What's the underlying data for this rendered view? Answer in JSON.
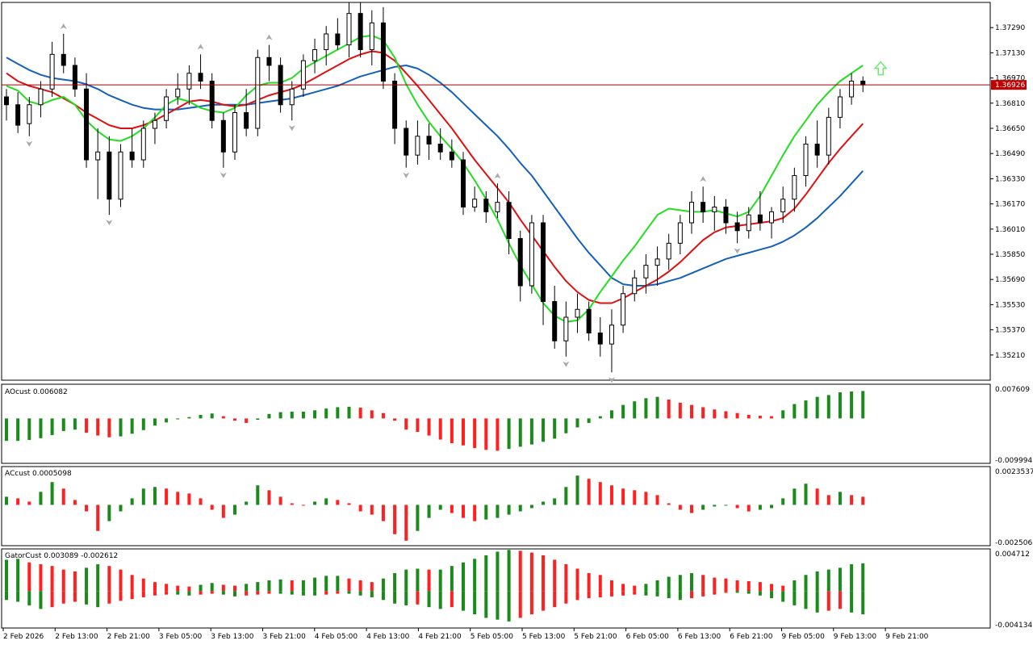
{
  "chart_data": {
    "type": "candlestick",
    "price": {
      "current_label": "1.36926",
      "current_value": 1.36926,
      "ylim": [
        1.3505,
        1.3745
      ],
      "yticks": [
        "1.37290",
        "1.37130",
        "1.36970",
        "1.36810",
        "1.36650",
        "1.36490",
        "1.36330",
        "1.36170",
        "1.36010",
        "1.35850",
        "1.35690",
        "1.35530",
        "1.35370",
        "1.35210"
      ],
      "candles": [
        [
          1.3685,
          1.369,
          1.367,
          1.368
        ],
        [
          1.368,
          1.3688,
          1.3662,
          1.3667
        ],
        [
          1.3668,
          1.3685,
          1.366,
          1.368
        ],
        [
          1.368,
          1.3695,
          1.3672,
          1.369
        ],
        [
          1.369,
          1.372,
          1.3685,
          1.3712
        ],
        [
          1.3712,
          1.3725,
          1.37,
          1.3705
        ],
        [
          1.3705,
          1.371,
          1.3685,
          1.369
        ],
        [
          1.369,
          1.37,
          1.364,
          1.3645
        ],
        [
          1.3645,
          1.3665,
          1.362,
          1.365
        ],
        [
          1.365,
          1.366,
          1.361,
          1.362
        ],
        [
          1.362,
          1.3655,
          1.3615,
          1.365
        ],
        [
          1.365,
          1.3665,
          1.364,
          1.3645
        ],
        [
          1.3645,
          1.367,
          1.364,
          1.3665
        ],
        [
          1.3665,
          1.3675,
          1.3655,
          1.367
        ],
        [
          1.367,
          1.369,
          1.3665,
          1.3685
        ],
        [
          1.3685,
          1.37,
          1.368,
          1.369
        ],
        [
          1.369,
          1.3705,
          1.368,
          1.37
        ],
        [
          1.37,
          1.3712,
          1.369,
          1.3695
        ],
        [
          1.3695,
          1.37,
          1.3665,
          1.367
        ],
        [
          1.367,
          1.3675,
          1.364,
          1.365
        ],
        [
          1.365,
          1.368,
          1.3645,
          1.3675
        ],
        [
          1.3675,
          1.369,
          1.366,
          1.3665
        ],
        [
          1.3665,
          1.3715,
          1.366,
          1.371
        ],
        [
          1.371,
          1.3718,
          1.3695,
          1.3705
        ],
        [
          1.3705,
          1.371,
          1.3675,
          1.368
        ],
        [
          1.368,
          1.3695,
          1.367,
          1.369
        ],
        [
          1.369,
          1.3712,
          1.3685,
          1.3708
        ],
        [
          1.3708,
          1.3722,
          1.37,
          1.3715
        ],
        [
          1.3715,
          1.373,
          1.3705,
          1.3725
        ],
        [
          1.3725,
          1.3735,
          1.3715,
          1.3718
        ],
        [
          1.3718,
          1.3745,
          1.371,
          1.3738
        ],
        [
          1.3738,
          1.3745,
          1.371,
          1.3715
        ],
        [
          1.3715,
          1.374,
          1.3705,
          1.3732
        ],
        [
          1.3732,
          1.3742,
          1.369,
          1.3695
        ],
        [
          1.3695,
          1.37,
          1.3655,
          1.3665
        ],
        [
          1.3665,
          1.367,
          1.364,
          1.3648
        ],
        [
          1.3648,
          1.367,
          1.3642,
          1.366
        ],
        [
          1.366,
          1.3668,
          1.3645,
          1.3655
        ],
        [
          1.3655,
          1.3665,
          1.3645,
          1.365
        ],
        [
          1.365,
          1.3658,
          1.364,
          1.3645
        ],
        [
          1.3645,
          1.365,
          1.361,
          1.3615
        ],
        [
          1.3615,
          1.3628,
          1.3612,
          1.362
        ],
        [
          1.362,
          1.3625,
          1.3605,
          1.3612
        ],
        [
          1.3612,
          1.363,
          1.3608,
          1.3618
        ],
        [
          1.3618,
          1.3625,
          1.3585,
          1.3595
        ],
        [
          1.3595,
          1.36,
          1.3555,
          1.3565
        ],
        [
          1.3565,
          1.361,
          1.356,
          1.3605
        ],
        [
          1.3605,
          1.361,
          1.354,
          1.3555
        ],
        [
          1.3555,
          1.3565,
          1.3525,
          1.353
        ],
        [
          1.353,
          1.3555,
          1.352,
          1.3545
        ],
        [
          1.3545,
          1.356,
          1.3535,
          1.355
        ],
        [
          1.355,
          1.3555,
          1.353,
          1.3535
        ],
        [
          1.3535,
          1.3545,
          1.352,
          1.3528
        ],
        [
          1.3528,
          1.355,
          1.351,
          1.354
        ],
        [
          1.354,
          1.3565,
          1.3535,
          1.356
        ],
        [
          1.356,
          1.3575,
          1.3555,
          1.357
        ],
        [
          1.357,
          1.3585,
          1.356,
          1.3578
        ],
        [
          1.3578,
          1.359,
          1.3565,
          1.3582
        ],
        [
          1.3582,
          1.3598,
          1.3575,
          1.3592
        ],
        [
          1.3592,
          1.361,
          1.3585,
          1.3605
        ],
        [
          1.3605,
          1.3625,
          1.3598,
          1.3618
        ],
        [
          1.3618,
          1.3628,
          1.3605,
          1.3612
        ],
        [
          1.3612,
          1.3622,
          1.36,
          1.3615
        ],
        [
          1.3615,
          1.362,
          1.3598,
          1.3605
        ],
        [
          1.3605,
          1.3612,
          1.3592,
          1.36
        ],
        [
          1.36,
          1.3615,
          1.3595,
          1.361
        ],
        [
          1.361,
          1.3625,
          1.36,
          1.3605
        ],
        [
          1.3605,
          1.3615,
          1.3595,
          1.3612
        ],
        [
          1.3612,
          1.3628,
          1.3605,
          1.362
        ],
        [
          1.362,
          1.364,
          1.3612,
          1.3635
        ],
        [
          1.3635,
          1.366,
          1.3628,
          1.3655
        ],
        [
          1.3655,
          1.367,
          1.364,
          1.3648
        ],
        [
          1.3648,
          1.3678,
          1.3642,
          1.3672
        ],
        [
          1.3672,
          1.369,
          1.3665,
          1.3685
        ],
        [
          1.3685,
          1.37,
          1.368,
          1.3695
        ],
        [
          1.3695,
          1.3698,
          1.3688,
          1.36926
        ]
      ]
    },
    "alligator": {
      "jaw": [
        1.371,
        1.3706,
        1.3702,
        1.3699,
        1.3697,
        1.3696,
        1.3695,
        1.3693,
        1.369,
        1.3686,
        1.3683,
        1.368,
        1.3678,
        1.3677,
        1.3677,
        1.3677,
        1.3678,
        1.3679,
        1.368,
        1.368,
        1.368,
        1.368,
        1.3681,
        1.3682,
        1.3683,
        1.3684,
        1.3686,
        1.3688,
        1.369,
        1.3692,
        1.3695,
        1.3698,
        1.37,
        1.3702,
        1.3704,
        1.3705,
        1.3703,
        1.3699,
        1.3694,
        1.3688,
        1.3681,
        1.3674,
        1.3667,
        1.366,
        1.3652,
        1.3643,
        1.3635,
        1.3625,
        1.3615,
        1.3605,
        1.3595,
        1.3586,
        1.3578,
        1.357,
        1.3566,
        1.3565,
        1.3565,
        1.3566,
        1.3568,
        1.357,
        1.3573,
        1.3576,
        1.3579,
        1.3582,
        1.3584,
        1.3586,
        1.3588,
        1.359,
        1.3593,
        1.3597,
        1.3602,
        1.3608,
        1.3615,
        1.3622,
        1.363,
        1.3638
      ],
      "teeth": [
        1.37,
        1.3695,
        1.3692,
        1.369,
        1.3688,
        1.3684,
        1.368,
        1.3675,
        1.3671,
        1.3667,
        1.3665,
        1.3665,
        1.3667,
        1.367,
        1.3674,
        1.3678,
        1.3682,
        1.3683,
        1.3682,
        1.368,
        1.3679,
        1.368,
        1.3683,
        1.3686,
        1.3688,
        1.369,
        1.3693,
        1.3697,
        1.3701,
        1.3705,
        1.3709,
        1.3712,
        1.3714,
        1.3713,
        1.3708,
        1.37,
        1.3692,
        1.3683,
        1.3674,
        1.3665,
        1.3655,
        1.3645,
        1.3636,
        1.3627,
        1.3618,
        1.3607,
        1.3597,
        1.3587,
        1.3577,
        1.3568,
        1.3561,
        1.3556,
        1.3554,
        1.3554,
        1.3557,
        1.3561,
        1.3565,
        1.3569,
        1.3574,
        1.358,
        1.3587,
        1.3594,
        1.3599,
        1.3602,
        1.3603,
        1.3604,
        1.3605,
        1.3606,
        1.3608,
        1.3614,
        1.3623,
        1.3633,
        1.3643,
        1.3652,
        1.366,
        1.3668
      ],
      "lips": [
        1.3692,
        1.3689,
        1.3682,
        1.368,
        1.3683,
        1.3685,
        1.368,
        1.367,
        1.3663,
        1.3658,
        1.3657,
        1.366,
        1.3665,
        1.3672,
        1.368,
        1.3684,
        1.3682,
        1.3678,
        1.3676,
        1.3675,
        1.3678,
        1.3686,
        1.3692,
        1.3694,
        1.3694,
        1.3697,
        1.3703,
        1.3707,
        1.3711,
        1.3715,
        1.3719,
        1.3723,
        1.3724,
        1.3721,
        1.371,
        1.3693,
        1.368,
        1.3669,
        1.366,
        1.3652,
        1.3643,
        1.3632,
        1.362,
        1.3607,
        1.3592,
        1.3578,
        1.3566,
        1.3554,
        1.3546,
        1.3542,
        1.3543,
        1.355,
        1.3561,
        1.3571,
        1.3581,
        1.359,
        1.36,
        1.361,
        1.3614,
        1.3613,
        1.3612,
        1.3612,
        1.3613,
        1.3611,
        1.3609,
        1.3612,
        1.3622,
        1.3635,
        1.3648,
        1.366,
        1.367,
        1.368,
        1.3688,
        1.3695,
        1.37,
        1.3705
      ]
    },
    "ao": {
      "label": "AOcust 0.006082",
      "ylim": [
        -0.009994,
        0.007609
      ],
      "yticks": [
        "0.007609",
        "-0.009994"
      ],
      "values": [
        -0.005,
        -0.005,
        -0.0048,
        -0.0044,
        -0.0037,
        -0.0028,
        -0.0025,
        -0.0032,
        -0.0038,
        -0.0042,
        -0.004,
        -0.0034,
        -0.0026,
        -0.0016,
        -0.0009,
        -0.0002,
        0.0003,
        0.0008,
        0.0011,
        0.0005,
        -0.0005,
        -0.001,
        -0.0003,
        0.001,
        0.0014,
        0.0015,
        0.0015,
        0.0018,
        0.0022,
        0.0025,
        0.0026,
        0.0024,
        0.0018,
        0.0012,
        -0.0005,
        -0.0025,
        -0.003,
        -0.0038,
        -0.0047,
        -0.0055,
        -0.006,
        -0.0066,
        -0.007,
        -0.0072,
        -0.0068,
        -0.0063,
        -0.0058,
        -0.0052,
        -0.0045,
        -0.0033,
        -0.002,
        -0.001,
        0.0005,
        0.0018,
        0.003,
        0.0038,
        0.0045,
        0.0048,
        0.0042,
        0.0035,
        0.003,
        0.0025,
        0.002,
        0.0016,
        0.0012,
        0.0008,
        0.0006,
        0.0005,
        0.0018,
        0.0032,
        0.004,
        0.0048,
        0.0052,
        0.0058,
        0.006,
        0.0061
      ]
    },
    "ac": {
      "label": "ACcust 0.0005098",
      "ylim": [
        -0.0025062,
        0.0023537
      ],
      "yticks": [
        "0.0023537",
        "-0.0025062"
      ],
      "values": [
        0.0005,
        0.0004,
        0.0002,
        0.0008,
        0.0014,
        0.001,
        0.0003,
        -0.0004,
        -0.0016,
        -0.001,
        -0.0004,
        0.0004,
        0.001,
        0.0011,
        0.001,
        0.0008,
        0.0007,
        0.0004,
        -0.0003,
        -0.0008,
        -0.0006,
        0.0002,
        0.0012,
        0.0009,
        0.0005,
        0.0001,
        0.0,
        0.0002,
        0.0004,
        0.0003,
        0.0001,
        -0.0004,
        -0.0006,
        -0.001,
        -0.0018,
        -0.0022,
        -0.0016,
        -0.0008,
        -0.0003,
        -0.0005,
        -0.0008,
        -0.001,
        -0.0009,
        -0.0008,
        -0.0006,
        -0.0004,
        -0.0002,
        0.0002,
        0.0004,
        0.0011,
        0.0018,
        0.0016,
        0.0014,
        0.0012,
        0.001,
        0.0009,
        0.0008,
        0.0006,
        0.0001,
        -0.0003,
        -0.0005,
        -0.0003,
        -0.0001,
        0.0,
        -0.0002,
        -0.0004,
        -0.0003,
        -0.0002,
        0.0004,
        0.001,
        0.0013,
        0.001,
        0.0006,
        0.0008,
        0.0006,
        0.0005
      ]
    },
    "gator": {
      "label": "GatorCust 0.003089 -0.002612",
      "ylim": [
        -0.004134,
        0.004712
      ],
      "yticks": [
        "0.004712",
        "-0.004134"
      ],
      "upper": [
        0.0035,
        0.0036,
        0.0032,
        0.003,
        0.0028,
        0.0024,
        0.0022,
        0.0026,
        0.003,
        0.0028,
        0.0024,
        0.0018,
        0.0014,
        0.001,
        0.0008,
        0.0006,
        0.0005,
        0.0007,
        0.0009,
        0.0007,
        0.0006,
        0.0008,
        0.001,
        0.0012,
        0.0013,
        0.0012,
        0.0012,
        0.0015,
        0.0017,
        0.0017,
        0.0014,
        0.0012,
        0.001,
        0.0014,
        0.002,
        0.0024,
        0.0025,
        0.0024,
        0.0024,
        0.0028,
        0.0032,
        0.0036,
        0.004,
        0.0044,
        0.0046,
        0.0045,
        0.0043,
        0.004,
        0.0035,
        0.003,
        0.0025,
        0.002,
        0.0018,
        0.0012,
        0.0008,
        0.0006,
        0.0008,
        0.0012,
        0.0016,
        0.0018,
        0.002,
        0.0018,
        0.0015,
        0.0014,
        0.0012,
        0.0011,
        0.001,
        0.0008,
        0.0006,
        0.0012,
        0.0018,
        0.0022,
        0.0024,
        0.0026,
        0.003,
        0.0031
      ],
      "lower": [
        -0.001,
        -0.0012,
        -0.0016,
        -0.002,
        -0.0018,
        -0.0014,
        -0.0012,
        -0.0015,
        -0.0018,
        -0.0014,
        -0.0011,
        -0.0009,
        -0.0007,
        -0.0005,
        -0.0004,
        -0.0004,
        -0.0005,
        -0.0004,
        -0.0003,
        -0.0004,
        -0.0006,
        -0.0005,
        -0.0004,
        -0.0003,
        -0.0003,
        -0.0004,
        -0.0005,
        -0.0005,
        -0.0004,
        -0.0003,
        -0.0003,
        -0.0005,
        -0.0007,
        -0.001,
        -0.0014,
        -0.0016,
        -0.0015,
        -0.0018,
        -0.002,
        -0.0018,
        -0.0022,
        -0.0026,
        -0.003,
        -0.0032,
        -0.0034,
        -0.003,
        -0.0026,
        -0.0022,
        -0.0018,
        -0.0014,
        -0.001,
        -0.0008,
        -0.0007,
        -0.0006,
        -0.0005,
        -0.0004,
        -0.0005,
        -0.0006,
        -0.0008,
        -0.001,
        -0.0008,
        -0.0006,
        -0.0004,
        -0.0002,
        -0.0002,
        -0.0003,
        -0.0005,
        -0.0008,
        -0.0012,
        -0.0016,
        -0.002,
        -0.0024,
        -0.0022,
        -0.002,
        -0.0024,
        -0.0026
      ]
    },
    "x_labels": [
      "2 Feb 2026",
      "2 Feb 13:00",
      "2 Feb 21:00",
      "3 Feb 05:00",
      "3 Feb 13:00",
      "3 Feb 21:00",
      "4 Feb 05:00",
      "4 Feb 13:00",
      "4 Feb 21:00",
      "5 Feb 05:00",
      "5 Feb 13:00",
      "5 Feb 21:00",
      "6 Feb 05:00",
      "6 Feb 13:00",
      "6 Feb 21:00",
      "9 Feb 05:00",
      "9 Feb 13:00",
      "9 Feb 21:00"
    ],
    "colors": {
      "bull_candle": "#ffffff",
      "bear_candle": "#000000",
      "jaw": "#1560bd",
      "teeth": "#e01010",
      "lips": "#22dd22",
      "bar_up": "#1a8a1a",
      "bar_down": "#ff2020",
      "current_price_line": "#a00000",
      "current_price_badge": "#c00000",
      "fractal": "#a8a8a8",
      "signal_arrow": "#6ee86e"
    }
  }
}
